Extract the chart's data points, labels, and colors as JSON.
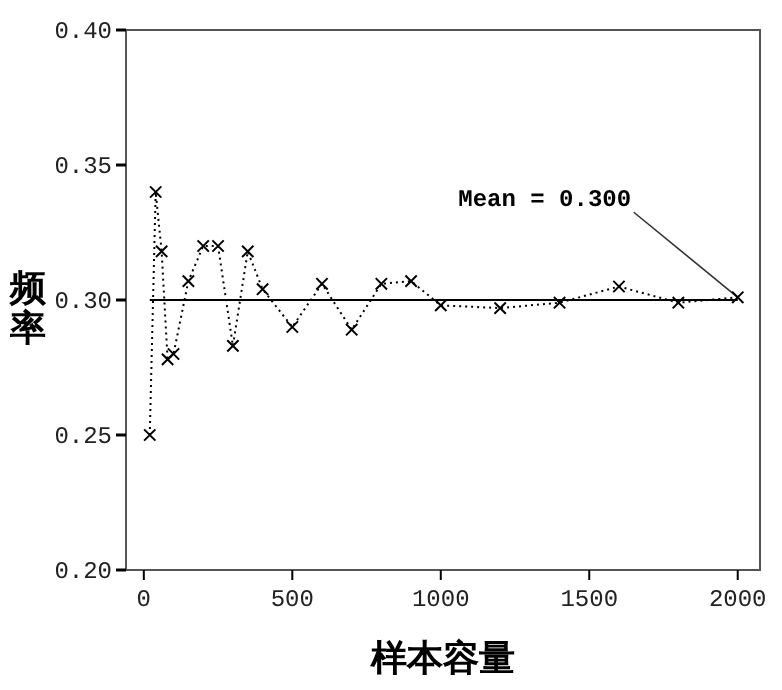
{
  "chart_data": {
    "type": "line",
    "xlabel": "样本容量",
    "ylabel": "频率",
    "x": [
      20,
      40,
      60,
      80,
      100,
      150,
      200,
      250,
      300,
      350,
      400,
      500,
      600,
      700,
      800,
      900,
      1000,
      1200,
      1400,
      1600,
      1800,
      2000
    ],
    "series": [
      {
        "color": "#000000",
        "values": [
          0.25,
          0.34,
          0.318,
          0.278,
          0.28,
          0.307,
          0.32,
          0.32,
          0.283,
          0.318,
          0.304,
          0.29,
          0.306,
          0.289,
          0.306,
          0.307,
          0.298,
          0.297,
          0.299,
          0.305,
          0.299,
          0.301
        ]
      }
    ],
    "xlim": [
      -60,
      2075
    ],
    "xticks": [
      0,
      500,
      1000,
      1500,
      2000
    ],
    "ylim": [
      0.2,
      0.4
    ],
    "yticks": [
      {
        "value": 0.2,
        "label": "0.20"
      },
      {
        "value": 0.25,
        "label": "0.25"
      },
      {
        "value": 0.3,
        "label": "0.30"
      },
      {
        "value": 0.35,
        "label": "0.35"
      },
      {
        "value": 0.4,
        "label": "0.40"
      }
    ],
    "ref_lines": [
      {
        "axis": "y",
        "value": 0.3,
        "label": "Mean = 0.300",
        "color": "#000000"
      }
    ],
    "marker": "cross",
    "line_style": "dotted",
    "grid": false
  }
}
